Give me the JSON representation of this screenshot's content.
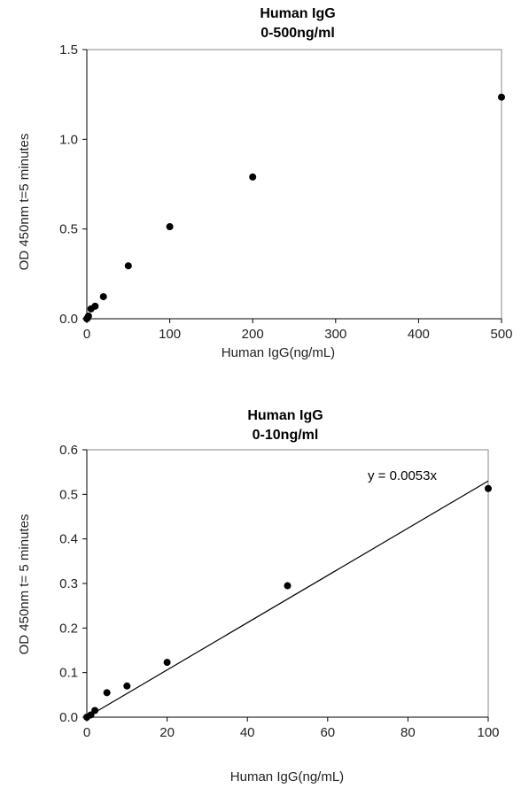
{
  "chart_data": [
    {
      "type": "scatter",
      "title": [
        "Human IgG",
        "0-500ng/ml"
      ],
      "xlabel": "Human IgG(ng/mL)",
      "ylabel": "OD 450nm t=5 minutes",
      "xlim": [
        0,
        500
      ],
      "ylim": [
        0,
        1.5
      ],
      "xticks": [
        "0",
        "100",
        "200",
        "300",
        "400",
        "500"
      ],
      "yticks": [
        "0.0",
        "0.5",
        "1.0",
        "1.5"
      ],
      "grid": false,
      "series": [
        {
          "x": [
            0,
            1,
            2,
            5,
            10,
            20,
            50,
            100,
            200,
            500
          ],
          "y": [
            0.0,
            0.005,
            0.015,
            0.055,
            0.07,
            0.123,
            0.295,
            0.513,
            0.79,
            1.235
          ]
        }
      ]
    },
    {
      "type": "scatter",
      "title": [
        "Human IgG",
        "0-10ng/ml"
      ],
      "xlabel": "Human IgG(ng/mL)",
      "ylabel": "OD 450nm t= 5 minutes",
      "xlim": [
        0,
        100
      ],
      "ylim": [
        0,
        0.6
      ],
      "xticks": [
        "0",
        "20",
        "40",
        "60",
        "80",
        "100"
      ],
      "yticks": [
        "0.0",
        "0.1",
        "0.2",
        "0.3",
        "0.4",
        "0.5",
        "0.6"
      ],
      "grid": false,
      "trendline": {
        "slope": 0.0053,
        "label": "y = 0.0053x"
      },
      "series": [
        {
          "x": [
            0,
            1,
            2,
            5,
            10,
            20,
            50,
            100
          ],
          "y": [
            0.0,
            0.005,
            0.015,
            0.055,
            0.07,
            0.123,
            0.295,
            0.513
          ]
        }
      ]
    }
  ]
}
